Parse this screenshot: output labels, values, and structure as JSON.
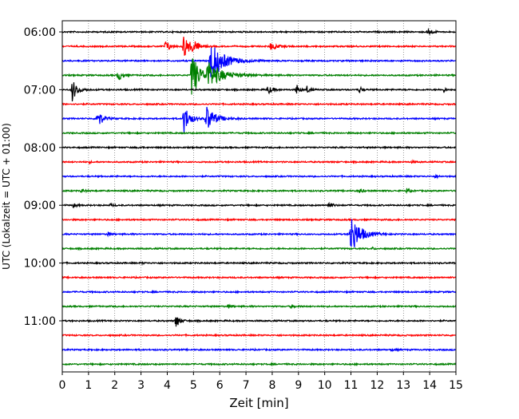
{
  "chart_data": {
    "type": "line",
    "title": "",
    "xlabel": "Zeit  [min]",
    "ylabel": "UTC (Lokalzeit = UTC + 01:00)",
    "xlim": [
      0,
      15
    ],
    "x_ticks": [
      "0",
      "1",
      "2",
      "3",
      "4",
      "5",
      "6",
      "7",
      "8",
      "9",
      "10",
      "11",
      "12",
      "13",
      "14",
      "15"
    ],
    "y_tick_labels": [
      "06:00",
      "07:00",
      "08:00",
      "09:00",
      "10:00",
      "11:00"
    ],
    "traces_per_hour": 4,
    "trace_colors": [
      "#000000",
      "#ff0000",
      "#0000ff",
      "#008000"
    ],
    "grid": {
      "vertical_dotted": true
    },
    "traces": [
      {
        "start": "06:00",
        "events": [
          {
            "t": 13.9,
            "amp": 0.6,
            "dur": 0.35
          }
        ]
      },
      {
        "start": "06:15",
        "events": [
          {
            "t": 3.9,
            "amp": 0.7,
            "dur": 0.5
          },
          {
            "t": 4.6,
            "amp": 1.6,
            "dur": 0.6
          },
          {
            "t": 4.95,
            "amp": 0.9,
            "dur": 0.4
          },
          {
            "t": 7.9,
            "amp": 0.45,
            "dur": 0.7
          }
        ]
      },
      {
        "start": "06:30",
        "events": [
          {
            "t": 5.6,
            "amp": 2.5,
            "dur": 1.4
          }
        ]
      },
      {
        "start": "06:45",
        "events": [
          {
            "t": 2.1,
            "amp": 0.8,
            "dur": 0.4
          },
          {
            "t": 4.9,
            "amp": 3.0,
            "dur": 0.8
          },
          {
            "t": 5.5,
            "amp": 1.5,
            "dur": 1.6
          }
        ]
      },
      {
        "start": "07:00",
        "events": [
          {
            "t": 0.35,
            "amp": 1.4,
            "dur": 0.5
          },
          {
            "t": 7.8,
            "amp": 0.6,
            "dur": 0.4
          },
          {
            "t": 8.9,
            "amp": 0.7,
            "dur": 0.25
          },
          {
            "t": 9.3,
            "amp": 0.5,
            "dur": 0.25
          },
          {
            "t": 11.3,
            "amp": 0.5,
            "dur": 0.25
          },
          {
            "t": 14.5,
            "amp": 0.4,
            "dur": 0.2
          }
        ]
      },
      {
        "start": "07:15",
        "events": []
      },
      {
        "start": "07:30",
        "events": [
          {
            "t": 1.3,
            "amp": 1.3,
            "dur": 0.5
          },
          {
            "t": 4.6,
            "amp": 1.9,
            "dur": 0.6
          },
          {
            "t": 5.45,
            "amp": 1.7,
            "dur": 0.9
          }
        ]
      },
      {
        "start": "07:45",
        "events": []
      },
      {
        "start": "08:00",
        "events": [
          {
            "t": 2.9,
            "amp": 0.15,
            "dur": 0.3
          }
        ]
      },
      {
        "start": "08:15",
        "events": [
          {
            "t": 1.0,
            "amp": 0.12,
            "dur": 0.2
          },
          {
            "t": 13.3,
            "amp": 0.12,
            "dur": 0.2
          }
        ]
      },
      {
        "start": "08:30",
        "events": [
          {
            "t": 14.2,
            "amp": 0.2,
            "dur": 0.3
          }
        ]
      },
      {
        "start": "08:45",
        "events": [
          {
            "t": 0.7,
            "amp": 0.25,
            "dur": 0.3
          },
          {
            "t": 11.3,
            "amp": 0.3,
            "dur": 0.3
          },
          {
            "t": 13.1,
            "amp": 0.3,
            "dur": 0.3
          }
        ]
      },
      {
        "start": "09:00",
        "events": [
          {
            "t": 0.4,
            "amp": 0.3,
            "dur": 0.3
          },
          {
            "t": 1.8,
            "amp": 0.2,
            "dur": 0.3
          },
          {
            "t": 10.1,
            "amp": 0.45,
            "dur": 0.4
          }
        ]
      },
      {
        "start": "09:15",
        "events": []
      },
      {
        "start": "09:30",
        "events": [
          {
            "t": 1.7,
            "amp": 0.3,
            "dur": 0.3
          },
          {
            "t": 10.95,
            "amp": 2.6,
            "dur": 1.0
          }
        ]
      },
      {
        "start": "09:45",
        "events": [
          {
            "t": 11.8,
            "amp": 0.15,
            "dur": 0.2
          }
        ]
      },
      {
        "start": "10:00",
        "events": [
          {
            "t": 3.0,
            "amp": 0.1,
            "dur": 0.2
          }
        ]
      },
      {
        "start": "10:15",
        "events": []
      },
      {
        "start": "10:30",
        "events": []
      },
      {
        "start": "10:45",
        "events": [
          {
            "t": 6.3,
            "amp": 0.2,
            "dur": 0.3
          },
          {
            "t": 8.7,
            "amp": 0.2,
            "dur": 0.4
          }
        ]
      },
      {
        "start": "11:00",
        "events": [
          {
            "t": 4.3,
            "amp": 0.9,
            "dur": 0.4
          }
        ]
      },
      {
        "start": "11:15",
        "events": []
      },
      {
        "start": "11:30",
        "events": [
          {
            "t": 12.5,
            "amp": 0.15,
            "dur": 0.3
          }
        ]
      },
      {
        "start": "11:45",
        "events": []
      }
    ]
  }
}
